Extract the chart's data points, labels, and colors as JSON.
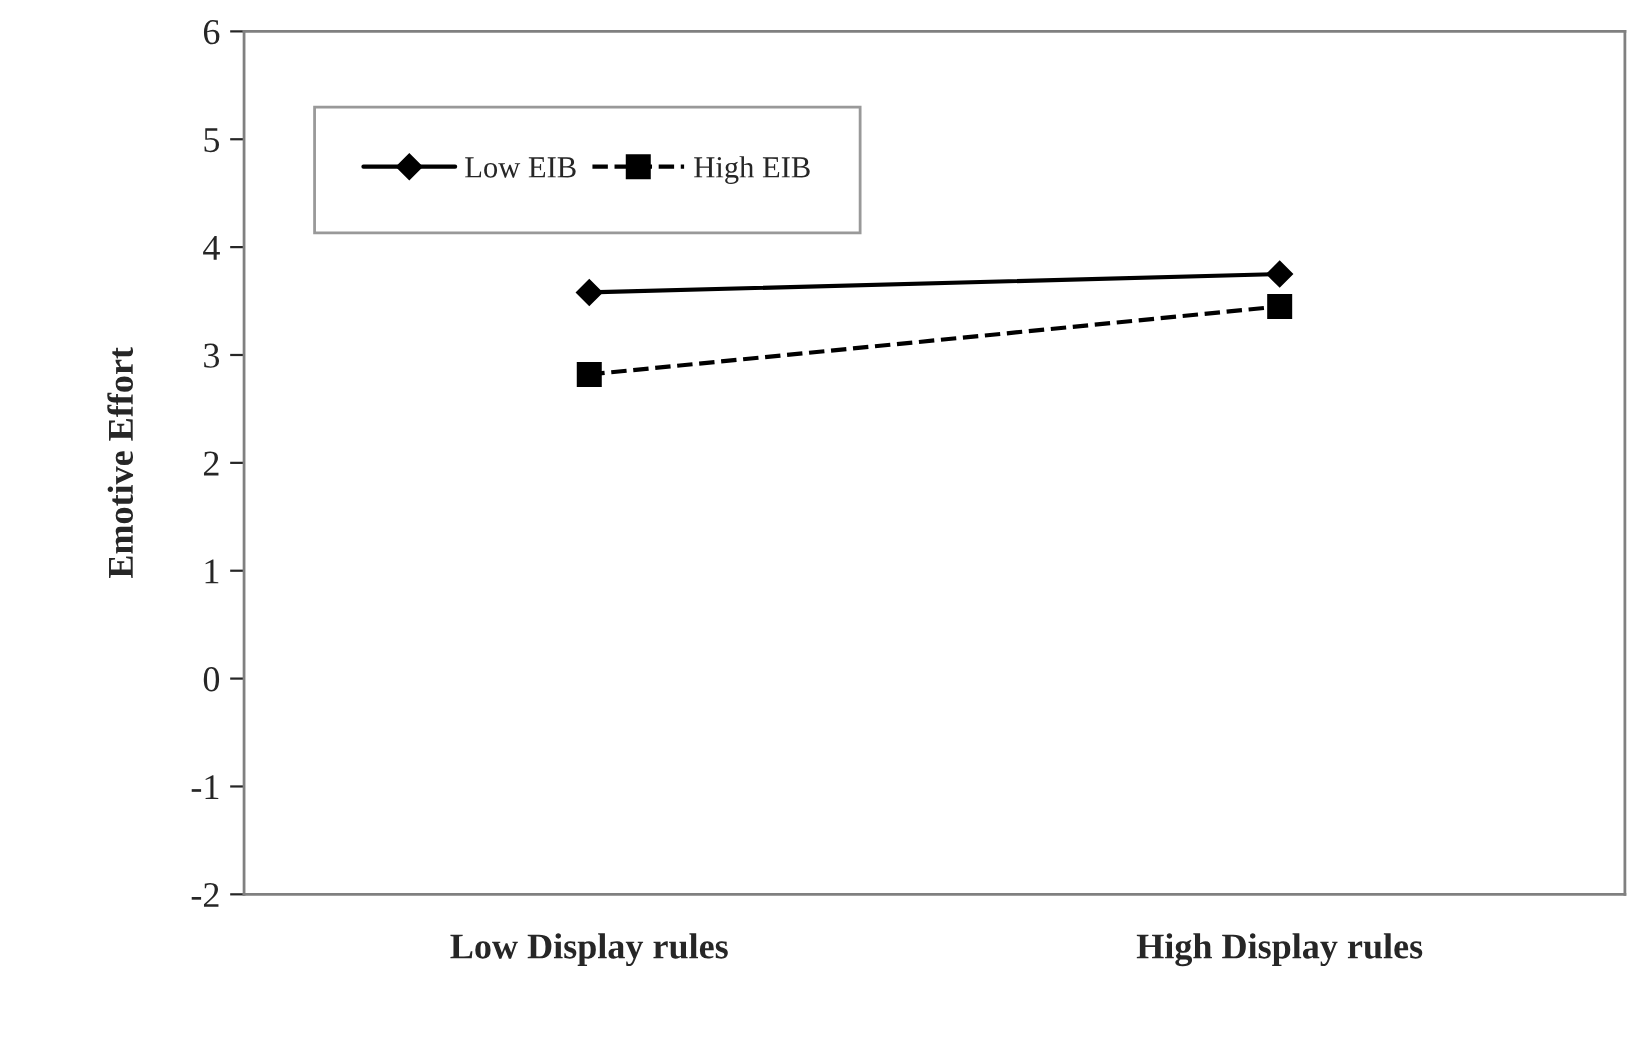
{
  "chart_data": {
    "type": "line",
    "ylabel": "Emotive Effort",
    "categories": [
      "Low Display rules",
      "High Display rules"
    ],
    "series": [
      {
        "name": "Low EIB",
        "color": "#000000",
        "values": [
          3.58,
          3.75
        ],
        "marker": "diamond",
        "line_style": "solid"
      },
      {
        "name": "High EIB",
        "color": "#000000",
        "values": [
          2.82,
          3.45
        ],
        "marker": "square",
        "line_style": "dashed"
      }
    ],
    "ylim": [
      -2,
      6
    ],
    "yticks": [
      -2,
      -1,
      0,
      1,
      2,
      3,
      4,
      5,
      6
    ],
    "grid": false,
    "legend": "top left"
  }
}
